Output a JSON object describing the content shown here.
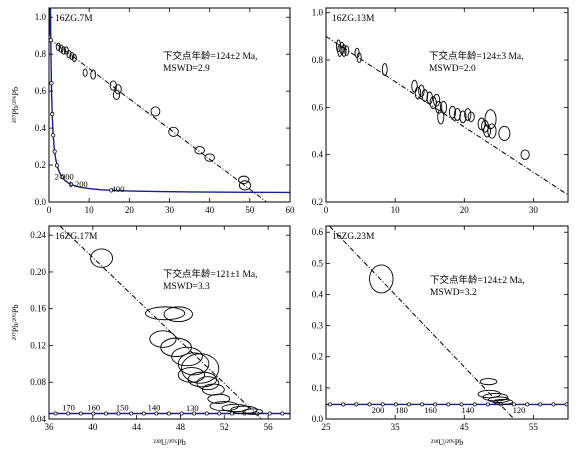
{
  "chart_data": [
    {
      "type": "scatter",
      "panel": "top-left",
      "sample": "16ZG.7M",
      "annotation": [
        "下交点年龄=124±2 Ma,",
        "MSWD=2.9"
      ],
      "ylabel": "²⁰⁷Pb/²⁰⁶Pb",
      "xlabel": "",
      "xlim": [
        0,
        60
      ],
      "ylim": [
        0,
        1.05
      ],
      "xticks": [
        0,
        10,
        20,
        30,
        40,
        50,
        60
      ],
      "yticks": [
        0.0,
        0.2,
        0.4,
        0.6,
        0.8,
        1.0
      ],
      "concordia_labels": [
        {
          "age_label": "2 000",
          "x": 1.4,
          "y": 0.123
        },
        {
          "age_label": "1 200",
          "x": 4.9,
          "y": 0.08
        },
        {
          "age_label": "400",
          "x": 15.6,
          "y": 0.055
        }
      ],
      "discordia_line": {
        "x0": 0,
        "y0": 0.885,
        "x1": 54.2,
        "y1": 0.0
      },
      "ellipses": [
        {
          "x": 2.3,
          "y": 0.84,
          "rx": 0.5,
          "ry": 0.02
        },
        {
          "x": 3.0,
          "y": 0.83,
          "rx": 0.5,
          "ry": 0.02
        },
        {
          "x": 3.6,
          "y": 0.82,
          "rx": 0.5,
          "ry": 0.02
        },
        {
          "x": 4.3,
          "y": 0.82,
          "rx": 0.5,
          "ry": 0.02
        },
        {
          "x": 5.0,
          "y": 0.8,
          "rx": 0.5,
          "ry": 0.02
        },
        {
          "x": 5.7,
          "y": 0.79,
          "rx": 0.5,
          "ry": 0.02
        },
        {
          "x": 6.3,
          "y": 0.78,
          "rx": 0.5,
          "ry": 0.02
        },
        {
          "x": 9.0,
          "y": 0.7,
          "rx": 0.5,
          "ry": 0.02
        },
        {
          "x": 11.0,
          "y": 0.69,
          "rx": 0.6,
          "ry": 0.025
        },
        {
          "x": 16.0,
          "y": 0.63,
          "rx": 0.8,
          "ry": 0.025
        },
        {
          "x": 16.8,
          "y": 0.58,
          "rx": 0.8,
          "ry": 0.025
        },
        {
          "x": 17.2,
          "y": 0.61,
          "rx": 0.8,
          "ry": 0.025
        },
        {
          "x": 26.5,
          "y": 0.49,
          "rx": 1.1,
          "ry": 0.025
        },
        {
          "x": 31.0,
          "y": 0.38,
          "rx": 1.2,
          "ry": 0.025
        },
        {
          "x": 37.5,
          "y": 0.28,
          "rx": 1.2,
          "ry": 0.02
        },
        {
          "x": 40.0,
          "y": 0.24,
          "rx": 1.2,
          "ry": 0.02
        },
        {
          "x": 48.5,
          "y": 0.12,
          "rx": 1.3,
          "ry": 0.02
        },
        {
          "x": 48.8,
          "y": 0.09,
          "rx": 1.4,
          "ry": 0.025
        }
      ]
    },
    {
      "type": "scatter",
      "panel": "top-right",
      "sample": "16ZG.13M",
      "annotation": [
        "下交点年龄=124±3 Ma,",
        "MSWD=2.0"
      ],
      "ylabel": "",
      "xlabel": "",
      "xlim": [
        0,
        35
      ],
      "ylim": [
        0.2,
        1.02
      ],
      "xticks": [
        0,
        10,
        20,
        30
      ],
      "yticks": [
        0.2,
        0.4,
        0.6,
        0.8,
        1.0
      ],
      "discordia_line": {
        "x0": 0,
        "y0": 0.9,
        "x1": 35,
        "y1": 0.23
      },
      "ellipses": [
        {
          "x": 1.8,
          "y": 0.86,
          "rx": 0.3,
          "ry": 0.025
        },
        {
          "x": 2.0,
          "y": 0.84,
          "rx": 0.3,
          "ry": 0.025
        },
        {
          "x": 2.3,
          "y": 0.85,
          "rx": 0.3,
          "ry": 0.025
        },
        {
          "x": 2.6,
          "y": 0.84,
          "rx": 0.3,
          "ry": 0.025
        },
        {
          "x": 3.0,
          "y": 0.84,
          "rx": 0.3,
          "ry": 0.02
        },
        {
          "x": 4.5,
          "y": 0.83,
          "rx": 0.3,
          "ry": 0.02
        },
        {
          "x": 4.8,
          "y": 0.81,
          "rx": 0.3,
          "ry": 0.02
        },
        {
          "x": 8.5,
          "y": 0.76,
          "rx": 0.35,
          "ry": 0.025
        },
        {
          "x": 12.8,
          "y": 0.69,
          "rx": 0.4,
          "ry": 0.025
        },
        {
          "x": 13.3,
          "y": 0.66,
          "rx": 0.4,
          "ry": 0.025
        },
        {
          "x": 13.8,
          "y": 0.67,
          "rx": 0.4,
          "ry": 0.025
        },
        {
          "x": 14.3,
          "y": 0.65,
          "rx": 0.4,
          "ry": 0.025
        },
        {
          "x": 15.0,
          "y": 0.64,
          "rx": 0.4,
          "ry": 0.025
        },
        {
          "x": 15.5,
          "y": 0.62,
          "rx": 0.45,
          "ry": 0.025
        },
        {
          "x": 16.0,
          "y": 0.63,
          "rx": 0.45,
          "ry": 0.025
        },
        {
          "x": 16.3,
          "y": 0.6,
          "rx": 0.45,
          "ry": 0.025
        },
        {
          "x": 16.6,
          "y": 0.56,
          "rx": 0.45,
          "ry": 0.03
        },
        {
          "x": 17.0,
          "y": 0.6,
          "rx": 0.45,
          "ry": 0.025
        },
        {
          "x": 18.3,
          "y": 0.58,
          "rx": 0.45,
          "ry": 0.025
        },
        {
          "x": 19.0,
          "y": 0.57,
          "rx": 0.45,
          "ry": 0.025
        },
        {
          "x": 19.8,
          "y": 0.56,
          "rx": 0.45,
          "ry": 0.025
        },
        {
          "x": 20.5,
          "y": 0.57,
          "rx": 0.45,
          "ry": 0.025
        },
        {
          "x": 21.0,
          "y": 0.56,
          "rx": 0.45,
          "ry": 0.02
        },
        {
          "x": 22.5,
          "y": 0.53,
          "rx": 0.5,
          "ry": 0.025
        },
        {
          "x": 23.0,
          "y": 0.52,
          "rx": 0.5,
          "ry": 0.025
        },
        {
          "x": 23.3,
          "y": 0.5,
          "rx": 0.5,
          "ry": 0.025
        },
        {
          "x": 23.8,
          "y": 0.55,
          "rx": 0.8,
          "ry": 0.04
        },
        {
          "x": 24.0,
          "y": 0.5,
          "rx": 0.6,
          "ry": 0.03
        },
        {
          "x": 25.8,
          "y": 0.49,
          "rx": 0.8,
          "ry": 0.03
        },
        {
          "x": 28.8,
          "y": 0.4,
          "rx": 0.6,
          "ry": 0.02
        }
      ]
    },
    {
      "type": "scatter",
      "panel": "bottom-left",
      "sample": "16ZG.17M",
      "annotation": [
        "下交点年龄=121±1 Ma,",
        "MSWD=3.3"
      ],
      "ylabel": "²⁰⁷Pb/²⁰⁶Pb",
      "xlabel": "²³⁸U/²⁰⁶Pb",
      "xlim": [
        36,
        58
      ],
      "ylim": [
        0.04,
        0.25
      ],
      "xticks": [
        36,
        40,
        44,
        48,
        52,
        56
      ],
      "yticks": [
        0.04,
        0.08,
        0.12,
        0.16,
        0.2,
        0.24
      ],
      "concordia_labels": [
        {
          "age_label": "170",
          "x": 37.2,
          "y": 0.047
        },
        {
          "age_label": "160",
          "x": 39.5,
          "y": 0.047
        },
        {
          "age_label": "150",
          "x": 42.1,
          "y": 0.047
        },
        {
          "age_label": "140",
          "x": 45.0,
          "y": 0.047
        },
        {
          "age_label": "130",
          "x": 48.5,
          "y": 0.0465
        }
      ],
      "discordia_line": {
        "x0": 37.0,
        "y0": 0.25,
        "x1": 55.4,
        "y1": 0.04
      },
      "ellipses": [
        {
          "x": 40.8,
          "y": 0.215,
          "rx": 1.0,
          "ry": 0.01
        },
        {
          "x": 46.6,
          "y": 0.155,
          "rx": 1.8,
          "ry": 0.007
        },
        {
          "x": 47.8,
          "y": 0.154,
          "rx": 1.3,
          "ry": 0.008
        },
        {
          "x": 46.4,
          "y": 0.127,
          "rx": 1.2,
          "ry": 0.009
        },
        {
          "x": 47.6,
          "y": 0.118,
          "rx": 1.4,
          "ry": 0.01
        },
        {
          "x": 48.6,
          "y": 0.108,
          "rx": 1.4,
          "ry": 0.01
        },
        {
          "x": 49.2,
          "y": 0.1,
          "rx": 1.4,
          "ry": 0.012
        },
        {
          "x": 49.8,
          "y": 0.095,
          "rx": 1.7,
          "ry": 0.016
        },
        {
          "x": 49.0,
          "y": 0.088,
          "rx": 1.2,
          "ry": 0.008
        },
        {
          "x": 50.0,
          "y": 0.083,
          "rx": 1.3,
          "ry": 0.008
        },
        {
          "x": 50.5,
          "y": 0.079,
          "rx": 1.0,
          "ry": 0.007
        },
        {
          "x": 51.0,
          "y": 0.072,
          "rx": 1.0,
          "ry": 0.006
        },
        {
          "x": 51.5,
          "y": 0.062,
          "rx": 1.0,
          "ry": 0.005
        },
        {
          "x": 52.0,
          "y": 0.054,
          "rx": 1.3,
          "ry": 0.005
        },
        {
          "x": 53.0,
          "y": 0.052,
          "rx": 1.2,
          "ry": 0.004
        },
        {
          "x": 53.8,
          "y": 0.05,
          "rx": 1.2,
          "ry": 0.004
        },
        {
          "x": 54.6,
          "y": 0.048,
          "rx": 0.9,
          "ry": 0.003
        }
      ]
    },
    {
      "type": "scatter",
      "panel": "bottom-right",
      "sample": "16ZG.23M",
      "annotation": [
        "下交点年龄=124±2 Ma,",
        "MSWD=3.2"
      ],
      "ylabel": "",
      "xlabel": "²³⁸U/²⁰⁶Pb",
      "xlim": [
        25,
        60
      ],
      "ylim": [
        0,
        0.62
      ],
      "xticks": [
        25,
        35,
        45,
        55
      ],
      "yticks": [
        0.0,
        0.1,
        0.2,
        0.3,
        0.4,
        0.5,
        0.6
      ],
      "concordia_labels": [
        {
          "age_label": "200",
          "x": 31.6,
          "y": 0.013
        },
        {
          "age_label": "180",
          "x": 35.0,
          "y": 0.013
        },
        {
          "age_label": "160",
          "x": 39.2,
          "y": 0.013
        },
        {
          "age_label": "140",
          "x": 44.6,
          "y": 0.013
        },
        {
          "age_label": "120",
          "x": 52.0,
          "y": 0.013
        }
      ],
      "discordia_line": {
        "x0": 25.5,
        "y0": 0.62,
        "x1": 52.2,
        "y1": 0.0
      },
      "ellipses": [
        {
          "x": 33.0,
          "y": 0.45,
          "rx": 1.7,
          "ry": 0.045
        },
        {
          "x": 48.5,
          "y": 0.12,
          "rx": 1.2,
          "ry": 0.01
        },
        {
          "x": 48.6,
          "y": 0.08,
          "rx": 1.6,
          "ry": 0.012
        },
        {
          "x": 49.5,
          "y": 0.07,
          "rx": 1.8,
          "ry": 0.012
        },
        {
          "x": 50.0,
          "y": 0.062,
          "rx": 1.5,
          "ry": 0.009
        },
        {
          "x": 50.6,
          "y": 0.055,
          "rx": 1.4,
          "ry": 0.008
        }
      ]
    }
  ]
}
